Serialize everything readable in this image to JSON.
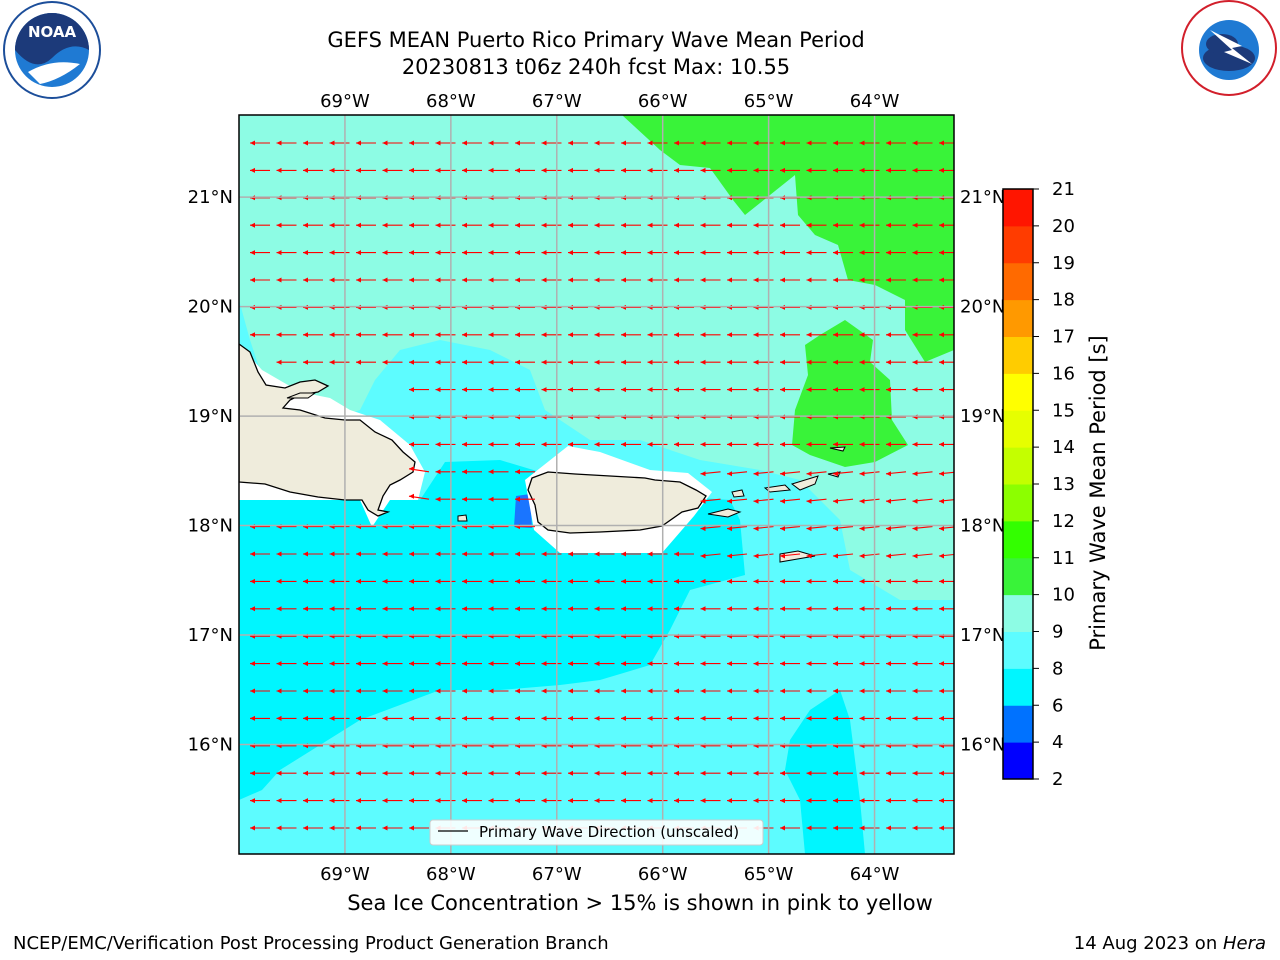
{
  "title": {
    "line1": "GEFS MEAN Puerto Rico Primary Wave Mean Period",
    "line2": "20230813 t06z 240h fcst   Max: 10.55"
  },
  "map": {
    "lon_range": [
      -70.0,
      -63.25
    ],
    "lat_range": [
      15.0,
      21.75
    ],
    "lon_ticks": [
      {
        "value": -69,
        "label": "69°W"
      },
      {
        "value": -68,
        "label": "68°W"
      },
      {
        "value": -67,
        "label": "67°W"
      },
      {
        "value": -66,
        "label": "66°W"
      },
      {
        "value": -65,
        "label": "65°W"
      },
      {
        "value": -64,
        "label": "64°W"
      }
    ],
    "lat_ticks": [
      {
        "value": 16,
        "label": "16°N"
      },
      {
        "value": 17,
        "label": "17°N"
      },
      {
        "value": 18,
        "label": "18°N"
      },
      {
        "value": 19,
        "label": "19°N"
      },
      {
        "value": 20,
        "label": "20°N"
      },
      {
        "value": 21,
        "label": "21°N"
      }
    ],
    "grid": true,
    "arrow_color": "#ff0000",
    "legend_label": "Primary Wave Direction (unscaled)",
    "legend_position": "bottom-center"
  },
  "colorbar": {
    "label": "Primary Wave Mean Period [s]",
    "ticks": [
      "2",
      "4",
      "6",
      "8",
      "9",
      "10",
      "11",
      "12",
      "13",
      "14",
      "15",
      "16",
      "17",
      "18",
      "19",
      "20",
      "21"
    ],
    "colors": [
      "#0000ff",
      "#0072ff",
      "#00f6ff",
      "#5dfcff",
      "#8dfce4",
      "#39f339",
      "#33ff00",
      "#8cff00",
      "#c4ff00",
      "#e6ff00",
      "#ffff00",
      "#ffcc00",
      "#ff9900",
      "#ff6a00",
      "#ff3c00",
      "#ff1500",
      "#ff0000"
    ]
  },
  "colors": {
    "period_6_8": "#00f6ff",
    "period_8_9": "#5dfcff",
    "period_9_10": "#8dfce4",
    "period_10_11": "#39f339",
    "period_4_6": "#1a75ff",
    "land": "#efecdc",
    "no_data": "#ffffff"
  },
  "logos": {
    "noaa_text": "NOAA",
    "noaa_ring": "NATIONAL OCEANIC AND ATMOSPHERIC ADMINISTRATION · U.S. DEPARTMENT OF COMMERCE",
    "nws_ring": "NATIONAL WEATHER SERVICE"
  },
  "footer": {
    "caption": "Sea Ice Concentration > 15% is shown in pink to yellow",
    "credit": "NCEP/EMC/Verification Post Processing Product Generation Branch",
    "date": "14 Aug 2023 on ",
    "host": "Hera"
  }
}
